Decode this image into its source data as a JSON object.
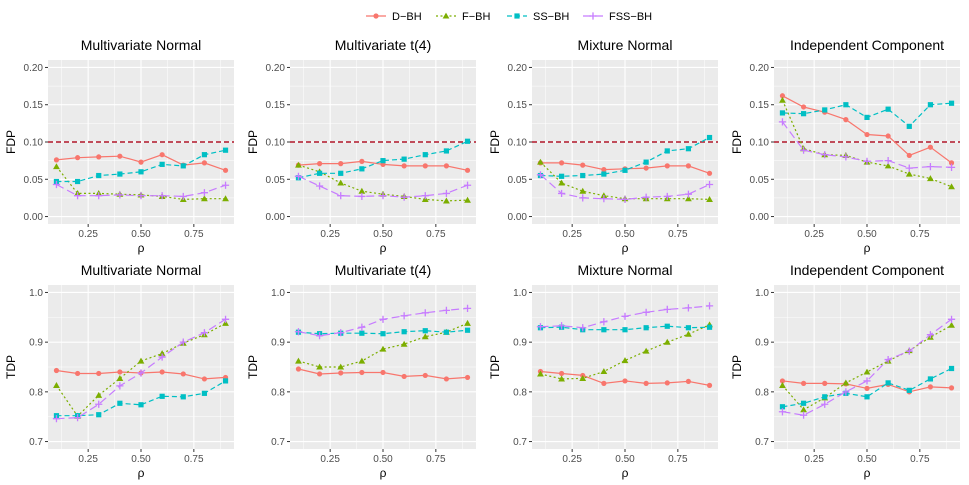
{
  "legend": [
    {
      "name": "D−BH",
      "color": "#F8766D",
      "marker": "circle",
      "dash": "solid"
    },
    {
      "name": "F−BH",
      "color": "#7CAE00",
      "marker": "triangle",
      "dash": "dotted"
    },
    {
      "name": "SS−BH",
      "color": "#00BFC4",
      "marker": "square",
      "dash": "dashed"
    },
    {
      "name": "FSS−BH",
      "color": "#C77CFF",
      "marker": "plus",
      "dash": "longdash"
    }
  ],
  "colors": {
    "panel_background": "#EBEBEB",
    "reference_line": "#B2182B"
  },
  "chart_data": [
    {
      "type": "line",
      "title": "Multivariate Normal",
      "xlabel": "ρ",
      "ylabel": "FDP",
      "x": [
        0.1,
        0.2,
        0.3,
        0.4,
        0.5,
        0.6,
        0.7,
        0.8,
        0.9
      ],
      "xticks": [
        "0.25",
        "0.50",
        "0.75"
      ],
      "ylim": [
        -0.01,
        0.21
      ],
      "yticks": [
        "0.00",
        "0.05",
        "0.10",
        "0.15",
        "0.20"
      ],
      "reference_line": 0.1,
      "series": [
        {
          "name": "D−BH",
          "values": [
            0.076,
            0.079,
            0.08,
            0.081,
            0.073,
            0.083,
            0.069,
            0.072,
            0.062
          ]
        },
        {
          "name": "F−BH",
          "values": [
            0.067,
            0.031,
            0.031,
            0.03,
            0.029,
            0.027,
            0.023,
            0.024,
            0.024
          ]
        },
        {
          "name": "SS−BH",
          "values": [
            0.047,
            0.047,
            0.055,
            0.057,
            0.06,
            0.07,
            0.068,
            0.083,
            0.089
          ]
        },
        {
          "name": "FSS−BH",
          "values": [
            0.043,
            0.028,
            0.028,
            0.029,
            0.028,
            0.028,
            0.027,
            0.032,
            0.042
          ]
        }
      ]
    },
    {
      "type": "line",
      "title": "Multivariate t(4)",
      "xlabel": "ρ",
      "ylabel": "FDP",
      "x": [
        0.1,
        0.2,
        0.3,
        0.4,
        0.5,
        0.6,
        0.7,
        0.8,
        0.9
      ],
      "xticks": [
        "0.25",
        "0.50",
        "0.75"
      ],
      "ylim": [
        -0.01,
        0.21
      ],
      "yticks": [
        "0.00",
        "0.05",
        "0.10",
        "0.15",
        "0.20"
      ],
      "reference_line": 0.1,
      "series": [
        {
          "name": "D−BH",
          "values": [
            0.069,
            0.071,
            0.071,
            0.074,
            0.07,
            0.068,
            0.068,
            0.068,
            0.062
          ]
        },
        {
          "name": "F−BH",
          "values": [
            0.069,
            0.06,
            0.045,
            0.034,
            0.03,
            0.027,
            0.023,
            0.021,
            0.022
          ]
        },
        {
          "name": "SS−BH",
          "values": [
            0.052,
            0.058,
            0.058,
            0.064,
            0.075,
            0.077,
            0.083,
            0.088,
            0.101
          ]
        },
        {
          "name": "FSS−BH",
          "values": [
            0.054,
            0.041,
            0.028,
            0.027,
            0.028,
            0.026,
            0.028,
            0.031,
            0.042
          ]
        }
      ]
    },
    {
      "type": "line",
      "title": "Mixture Normal",
      "xlabel": "ρ",
      "ylabel": "FDP",
      "x": [
        0.1,
        0.2,
        0.3,
        0.4,
        0.5,
        0.6,
        0.7,
        0.8,
        0.9
      ],
      "xticks": [
        "0.25",
        "0.50",
        "0.75"
      ],
      "ylim": [
        -0.01,
        0.21
      ],
      "yticks": [
        "0.00",
        "0.05",
        "0.10",
        "0.15",
        "0.20"
      ],
      "reference_line": 0.1,
      "series": [
        {
          "name": "D−BH",
          "values": [
            0.072,
            0.072,
            0.069,
            0.063,
            0.064,
            0.065,
            0.068,
            0.068,
            0.058
          ]
        },
        {
          "name": "F−BH",
          "values": [
            0.073,
            0.045,
            0.034,
            0.028,
            0.024,
            0.024,
            0.024,
            0.024,
            0.023
          ]
        },
        {
          "name": "SS−BH",
          "values": [
            0.055,
            0.054,
            0.055,
            0.057,
            0.062,
            0.073,
            0.088,
            0.091,
            0.106
          ]
        },
        {
          "name": "FSS−BH",
          "values": [
            0.056,
            0.031,
            0.025,
            0.024,
            0.023,
            0.026,
            0.027,
            0.03,
            0.043
          ]
        }
      ]
    },
    {
      "type": "line",
      "title": "Independent Component",
      "xlabel": "ρ",
      "ylabel": "FDP",
      "x": [
        0.1,
        0.2,
        0.3,
        0.4,
        0.5,
        0.6,
        0.7,
        0.8,
        0.9
      ],
      "xticks": [
        "0.25",
        "0.50",
        "0.75"
      ],
      "ylim": [
        -0.01,
        0.21
      ],
      "yticks": [
        "0.00",
        "0.05",
        "0.10",
        "0.15",
        "0.20"
      ],
      "reference_line": 0.1,
      "series": [
        {
          "name": "D−BH",
          "values": [
            0.162,
            0.147,
            0.14,
            0.13,
            0.11,
            0.108,
            0.082,
            0.093,
            0.072
          ]
        },
        {
          "name": "F−BH",
          "values": [
            0.156,
            0.091,
            0.083,
            0.082,
            0.073,
            0.068,
            0.057,
            0.051,
            0.04
          ]
        },
        {
          "name": "SS−BH",
          "values": [
            0.139,
            0.138,
            0.143,
            0.15,
            0.133,
            0.144,
            0.121,
            0.15,
            0.152
          ]
        },
        {
          "name": "FSS−BH",
          "values": [
            0.127,
            0.089,
            0.083,
            0.08,
            0.074,
            0.075,
            0.065,
            0.067,
            0.066
          ]
        }
      ]
    },
    {
      "type": "line",
      "title": "Multivariate Normal",
      "xlabel": "ρ",
      "ylabel": "TDP",
      "x": [
        0.1,
        0.2,
        0.3,
        0.4,
        0.5,
        0.6,
        0.7,
        0.8,
        0.9
      ],
      "xticks": [
        "0.25",
        "0.50",
        "0.75"
      ],
      "ylim": [
        0.685,
        1.015
      ],
      "yticks": [
        "0.7",
        "0.8",
        "0.9",
        "1.0"
      ],
      "series": [
        {
          "name": "D−BH",
          "values": [
            0.843,
            0.837,
            0.837,
            0.84,
            0.838,
            0.84,
            0.836,
            0.826,
            0.829
          ]
        },
        {
          "name": "F−BH",
          "values": [
            0.813,
            0.751,
            0.793,
            0.827,
            0.862,
            0.877,
            0.898,
            0.915,
            0.938
          ]
        },
        {
          "name": "SS−BH",
          "values": [
            0.752,
            0.752,
            0.754,
            0.777,
            0.774,
            0.791,
            0.79,
            0.797,
            0.822
          ]
        },
        {
          "name": "FSS−BH",
          "values": [
            0.746,
            0.748,
            0.775,
            0.812,
            0.838,
            0.87,
            0.9,
            0.919,
            0.946
          ]
        }
      ]
    },
    {
      "type": "line",
      "title": "Multivariate t(4)",
      "xlabel": "ρ",
      "ylabel": "TDP",
      "x": [
        0.1,
        0.2,
        0.3,
        0.4,
        0.5,
        0.6,
        0.7,
        0.8,
        0.9
      ],
      "xticks": [
        "0.25",
        "0.50",
        "0.75"
      ],
      "ylim": [
        0.685,
        1.015
      ],
      "yticks": [
        "0.7",
        "0.8",
        "0.9",
        "1.0"
      ],
      "series": [
        {
          "name": "D−BH",
          "values": [
            0.846,
            0.836,
            0.838,
            0.839,
            0.839,
            0.831,
            0.833,
            0.826,
            0.829
          ]
        },
        {
          "name": "F−BH",
          "values": [
            0.862,
            0.85,
            0.85,
            0.862,
            0.886,
            0.896,
            0.911,
            0.92,
            0.938
          ]
        },
        {
          "name": "SS−BH",
          "values": [
            0.92,
            0.917,
            0.918,
            0.918,
            0.917,
            0.921,
            0.923,
            0.92,
            0.924
          ]
        },
        {
          "name": "FSS−BH",
          "values": [
            0.921,
            0.913,
            0.919,
            0.93,
            0.946,
            0.953,
            0.959,
            0.964,
            0.968
          ]
        }
      ]
    },
    {
      "type": "line",
      "title": "Mixture Normal",
      "xlabel": "ρ",
      "ylabel": "TDP",
      "x": [
        0.1,
        0.2,
        0.3,
        0.4,
        0.5,
        0.6,
        0.7,
        0.8,
        0.9
      ],
      "xticks": [
        "0.25",
        "0.50",
        "0.75"
      ],
      "ylim": [
        0.685,
        1.015
      ],
      "yticks": [
        "0.7",
        "0.8",
        "0.9",
        "1.0"
      ],
      "series": [
        {
          "name": "D−BH",
          "values": [
            0.841,
            0.837,
            0.833,
            0.817,
            0.822,
            0.817,
            0.818,
            0.821,
            0.813
          ]
        },
        {
          "name": "F−BH",
          "values": [
            0.836,
            0.826,
            0.827,
            0.841,
            0.863,
            0.882,
            0.9,
            0.916,
            0.935
          ]
        },
        {
          "name": "SS−BH",
          "values": [
            0.929,
            0.93,
            0.925,
            0.925,
            0.925,
            0.929,
            0.932,
            0.929,
            0.93
          ]
        },
        {
          "name": "FSS−BH",
          "values": [
            0.931,
            0.933,
            0.929,
            0.941,
            0.952,
            0.96,
            0.966,
            0.969,
            0.973
          ]
        }
      ]
    },
    {
      "type": "line",
      "title": "Independent Component",
      "xlabel": "ρ",
      "ylabel": "TDP",
      "x": [
        0.1,
        0.2,
        0.3,
        0.4,
        0.5,
        0.6,
        0.7,
        0.8,
        0.9
      ],
      "xticks": [
        "0.25",
        "0.50",
        "0.75"
      ],
      "ylim": [
        0.685,
        1.015
      ],
      "yticks": [
        "0.7",
        "0.8",
        "0.9",
        "1.0"
      ],
      "series": [
        {
          "name": "D−BH",
          "values": [
            0.822,
            0.817,
            0.817,
            0.816,
            0.807,
            0.815,
            0.8,
            0.81,
            0.808
          ]
        },
        {
          "name": "F−BH",
          "values": [
            0.813,
            0.764,
            0.788,
            0.818,
            0.84,
            0.862,
            0.883,
            0.91,
            0.934
          ]
        },
        {
          "name": "SS−BH",
          "values": [
            0.77,
            0.777,
            0.79,
            0.797,
            0.79,
            0.818,
            0.803,
            0.826,
            0.847
          ]
        },
        {
          "name": "FSS−BH",
          "values": [
            0.76,
            0.753,
            0.775,
            0.8,
            0.822,
            0.865,
            0.882,
            0.915,
            0.946
          ]
        }
      ]
    }
  ]
}
